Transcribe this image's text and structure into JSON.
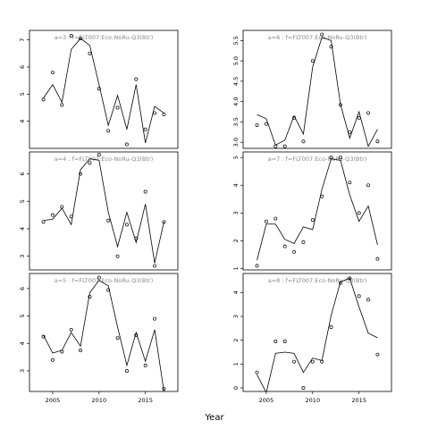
{
  "xlabel": "Year",
  "x_ticks": [
    2005,
    2010,
    2015
  ],
  "chart_data": [
    {
      "type": "scatter",
      "title": "a=3 : f=FLT007:Eco-NoRu-Q3(Btr)",
      "xlim": [
        2002.5,
        2018.5
      ],
      "ylim": [
        3.0,
        7.35
      ],
      "yticks": [
        4,
        5,
        6,
        7
      ],
      "observed": {
        "x": [
          2004,
          2005,
          2006,
          2007,
          2008,
          2009,
          2010,
          2011,
          2012,
          2013,
          2014,
          2015,
          2016,
          2017
        ],
        "y": [
          4.8,
          5.8,
          4.6,
          7.15,
          7.05,
          6.5,
          5.2,
          3.65,
          4.5,
          3.15,
          5.55,
          3.7,
          4.3,
          4.25
        ]
      },
      "fitted": {
        "x": [
          2004,
          2005,
          2006,
          2007,
          2008,
          2009,
          2010,
          2011,
          2012,
          2013,
          2014,
          2015,
          2016,
          2017
        ],
        "y": [
          4.85,
          5.35,
          4.7,
          6.65,
          7.05,
          6.8,
          5.35,
          3.85,
          4.95,
          3.7,
          5.35,
          3.2,
          4.55,
          4.3
        ]
      }
    },
    {
      "type": "scatter",
      "title": "a=6 : f=FLT007:Eco-NoRu-Q3(Btr)",
      "xlim": [
        2002.5,
        2018.5
      ],
      "ylim": [
        2.85,
        5.75
      ],
      "yticks": [
        3.0,
        3.5,
        4.0,
        4.5,
        5.0,
        5.5
      ],
      "observed": {
        "x": [
          2004,
          2005,
          2006,
          2007,
          2008,
          2009,
          2010,
          2011,
          2012,
          2013,
          2014,
          2015,
          2016,
          2017
        ],
        "y": [
          3.42,
          3.45,
          2.9,
          2.9,
          3.6,
          3.02,
          5.0,
          5.65,
          5.35,
          3.92,
          3.25,
          3.6,
          3.72,
          3.02
        ]
      },
      "fitted": {
        "x": [
          2004,
          2005,
          2006,
          2007,
          2008,
          2009,
          2010,
          2011,
          2012,
          2013,
          2014,
          2015,
          2016,
          2017
        ],
        "y": [
          3.68,
          3.58,
          2.93,
          3.05,
          3.65,
          3.2,
          4.85,
          5.58,
          5.5,
          3.93,
          3.1,
          3.75,
          2.9,
          3.32
        ]
      }
    },
    {
      "type": "scatter",
      "title": "a=4 : f=FLT007:Eco-NoRu-Q3(Btr)",
      "xlim": [
        2002.5,
        2018.5
      ],
      "ylim": [
        2.5,
        6.8
      ],
      "yticks": [
        3,
        4,
        5,
        6
      ],
      "observed": {
        "x": [
          2004,
          2005,
          2006,
          2007,
          2008,
          2009,
          2010,
          2011,
          2012,
          2013,
          2014,
          2015,
          2016,
          2017
        ],
        "y": [
          4.25,
          4.5,
          4.8,
          4.45,
          6.0,
          6.4,
          6.7,
          4.3,
          3.0,
          4.15,
          3.65,
          5.35,
          2.65,
          4.25
        ]
      },
      "fitted": {
        "x": [
          2004,
          2005,
          2006,
          2007,
          2008,
          2009,
          2010,
          2011,
          2012,
          2013,
          2014,
          2015,
          2016,
          2017
        ],
        "y": [
          4.3,
          4.35,
          4.75,
          4.15,
          6.15,
          6.55,
          6.5,
          4.6,
          3.35,
          4.6,
          3.5,
          4.9,
          2.75,
          4.25
        ]
      }
    },
    {
      "type": "scatter",
      "title": "a=7 : f=FLT007:Eco-NoRu-Q3(Btr)",
      "xlim": [
        2002.5,
        2018.5
      ],
      "ylim": [
        0.95,
        5.2
      ],
      "yticks": [
        1,
        2,
        3,
        4,
        5
      ],
      "observed": {
        "x": [
          2004,
          2005,
          2006,
          2007,
          2008,
          2009,
          2010,
          2011,
          2012,
          2013,
          2014,
          2015,
          2016,
          2017
        ],
        "y": [
          1.1,
          2.7,
          2.8,
          1.8,
          1.6,
          1.95,
          2.75,
          3.6,
          5.0,
          5.0,
          4.1,
          3.0,
          4.0,
          1.35
        ]
      },
      "fitted": {
        "x": [
          2004,
          2005,
          2006,
          2007,
          2008,
          2009,
          2010,
          2011,
          2012,
          2013,
          2014,
          2015,
          2016,
          2017
        ],
        "y": [
          1.3,
          2.6,
          2.6,
          2.05,
          1.9,
          2.5,
          2.4,
          3.85,
          4.95,
          4.9,
          3.65,
          2.7,
          3.25,
          1.85
        ]
      }
    },
    {
      "type": "scatter",
      "title": "a=5 : f=FLT007:Eco-NoRu-Q3(Btr)",
      "xlim": [
        2002.5,
        2018.5
      ],
      "ylim": [
        2.25,
        6.55
      ],
      "yticks": [
        3,
        4,
        5,
        6
      ],
      "observed": {
        "x": [
          2004,
          2005,
          2006,
          2007,
          2008,
          2009,
          2010,
          2011,
          2012,
          2013,
          2014,
          2015,
          2016,
          2017
        ],
        "y": [
          4.25,
          3.4,
          3.7,
          4.5,
          3.75,
          5.7,
          6.4,
          5.95,
          4.2,
          3.0,
          4.3,
          3.2,
          4.9,
          2.35
        ]
      },
      "fitted": {
        "x": [
          2004,
          2005,
          2006,
          2007,
          2008,
          2009,
          2010,
          2011,
          2012,
          2013,
          2014,
          2015,
          2016,
          2017
        ],
        "y": [
          4.3,
          3.65,
          3.75,
          4.4,
          3.9,
          5.85,
          6.3,
          6.1,
          4.6,
          3.2,
          4.4,
          3.35,
          4.5,
          2.25
        ]
      }
    },
    {
      "type": "scatter",
      "title": "a=8 : f=FLT007:Eco-NoRu-Q3(Btr)",
      "xlim": [
        2002.5,
        2018.5
      ],
      "ylim": [
        -0.15,
        4.8
      ],
      "yticks": [
        0,
        1,
        2,
        3,
        4
      ],
      "observed": {
        "x": [
          2004,
          2006,
          2007,
          2008,
          2009,
          2010,
          2011,
          2012,
          2013,
          2014,
          2015,
          2016,
          2017
        ],
        "y": [
          0.65,
          1.95,
          1.95,
          1.1,
          0.0,
          1.1,
          1.1,
          2.55,
          4.4,
          4.6,
          3.85,
          3.7,
          1.4
        ]
      },
      "fitted": {
        "x": [
          2004,
          2005,
          2006,
          2007,
          2008,
          2009,
          2010,
          2011,
          2012,
          2013,
          2014,
          2015,
          2016,
          2017
        ],
        "y": [
          0.55,
          -0.2,
          1.45,
          1.5,
          1.45,
          0.65,
          1.25,
          1.15,
          3.05,
          4.45,
          4.6,
          3.4,
          2.3,
          2.1
        ]
      }
    }
  ]
}
